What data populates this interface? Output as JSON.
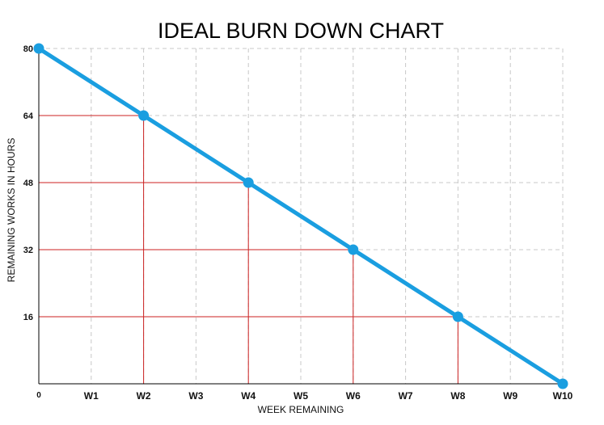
{
  "chart_data": {
    "type": "line",
    "title": "IDEAL BURN DOWN CHART",
    "xlabel": "WEEK REMAINING",
    "ylabel": "REMAINING WORKS IN HOURS",
    "x_origin_label": "0",
    "categories": [
      "W1",
      "W2",
      "W3",
      "W4",
      "W5",
      "W6",
      "W7",
      "W8",
      "W9",
      "W10"
    ],
    "x": [
      0,
      2,
      4,
      6,
      8,
      10
    ],
    "y": [
      80,
      64,
      48,
      32,
      16,
      0
    ],
    "yticks": [
      16,
      32,
      48,
      64,
      80
    ],
    "xlim": [
      0,
      10
    ],
    "ylim": [
      0,
      80
    ],
    "grid": true,
    "legend": "none",
    "colors": {
      "line": "#1a9ee0",
      "marker": "#1a9ee0",
      "guide": "#cc2222",
      "grid": "#c8c8c8",
      "axis": "#000000"
    }
  }
}
